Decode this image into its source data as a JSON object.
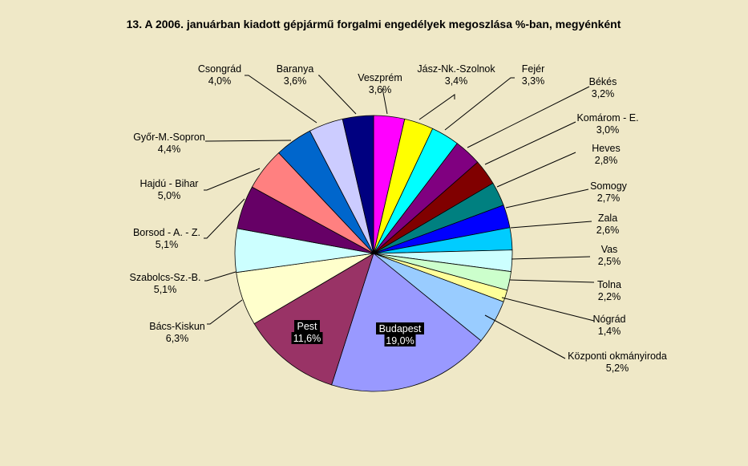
{
  "chart_data": {
    "type": "pie",
    "title": "13. A  2006. januárban kiadott gépjármű forgalmi engedélyek megoszlása %-ban, megyénként",
    "start_angle_deg": -90,
    "direction": "clockwise",
    "slices": [
      {
        "name": "Veszprém",
        "label": "3,6%",
        "value": 3.6,
        "color": "#ff00ff"
      },
      {
        "name": "Jász-Nk.-Szolnok",
        "label": "3,4%",
        "value": 3.4,
        "color": "#ffff00"
      },
      {
        "name": "Fejér",
        "label": "3,3%",
        "value": 3.3,
        "color": "#00ffff"
      },
      {
        "name": "Békés",
        "label": "3,2%",
        "value": 3.2,
        "color": "#800080"
      },
      {
        "name": "Komárom - E.",
        "label": "3,0%",
        "value": 3.0,
        "color": "#800000"
      },
      {
        "name": "Heves",
        "label": "2,8%",
        "value": 2.8,
        "color": "#008080"
      },
      {
        "name": "Somogy",
        "label": "2,7%",
        "value": 2.7,
        "color": "#0000ff"
      },
      {
        "name": "Zala",
        "label": "2,6%",
        "value": 2.6,
        "color": "#00ccff"
      },
      {
        "name": "Vas",
        "label": "2,5%",
        "value": 2.5,
        "color": "#ccffff"
      },
      {
        "name": "Tolna",
        "label": "2,2%",
        "value": 2.2,
        "color": "#ccffcc"
      },
      {
        "name": "Nógrád",
        "label": "1,4%",
        "value": 1.4,
        "color": "#ffff99"
      },
      {
        "name": "Központi okmányiroda",
        "label": "5,2%",
        "value": 5.2,
        "color": "#99ccff"
      },
      {
        "name": "Budapest",
        "label": "19,0%",
        "value": 19.0,
        "color": "#9999ff"
      },
      {
        "name": "Pest",
        "label": "11,6%",
        "value": 11.6,
        "color": "#993366"
      },
      {
        "name": "Bács-Kiskun",
        "label": "6,3%",
        "value": 6.3,
        "color": "#ffffcc"
      },
      {
        "name": "Szabolcs-Sz.-B.",
        "label": "5,1%",
        "value": 5.1,
        "color": "#ccffff"
      },
      {
        "name": "Borsod - A. - Z.",
        "label": "5,1%",
        "value": 5.1,
        "color": "#660066"
      },
      {
        "name": "Hajdú - Bihar",
        "label": "5,0%",
        "value": 5.0,
        "color": "#ff8080"
      },
      {
        "name": "Győr-M.-Sopron",
        "label": "4,4%",
        "value": 4.4,
        "color": "#0066cc"
      },
      {
        "name": "Csongrád",
        "label": "4,0%",
        "value": 4.0,
        "color": "#ccccff"
      },
      {
        "name": "Baranya",
        "label": "3,6%",
        "value": 3.6,
        "color": "#000080"
      }
    ]
  }
}
